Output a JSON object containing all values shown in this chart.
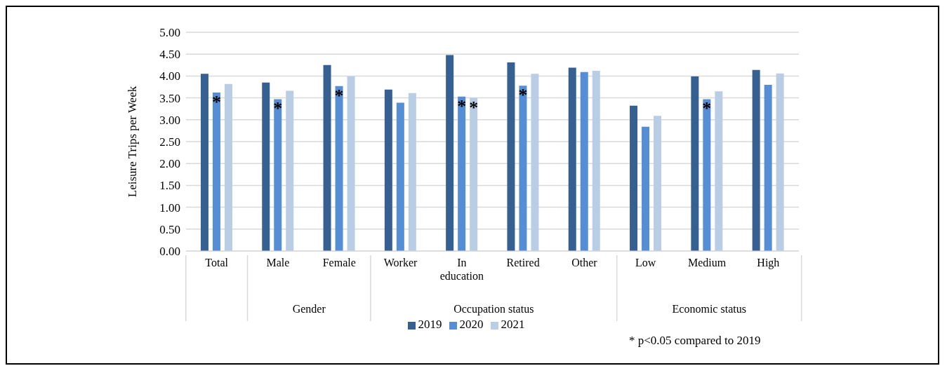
{
  "chart_data": {
    "type": "bar",
    "ylabel": "Leisure Trips per Week",
    "categories": [
      "Total",
      "Male",
      "Female",
      "Worker",
      "In education",
      "Retired",
      "Other",
      "Low",
      "Medium",
      "High"
    ],
    "series": [
      {
        "name": "2019",
        "color": "#366092",
        "values": [
          4.05,
          3.85,
          4.25,
          3.69,
          4.48,
          4.31,
          4.19,
          3.32,
          3.99,
          4.14
        ]
      },
      {
        "name": "2020",
        "color": "#558ed5",
        "values": [
          3.62,
          3.47,
          3.77,
          3.39,
          3.53,
          3.78,
          4.09,
          2.84,
          3.47,
          3.8
        ]
      },
      {
        "name": "2021",
        "color": "#b9cde5",
        "values": [
          3.82,
          3.66,
          3.99,
          3.61,
          3.5,
          4.05,
          4.12,
          3.09,
          3.65,
          4.06
        ]
      }
    ],
    "ylim": [
      0,
      5
    ],
    "yticks": [
      {
        "value": 0,
        "label": "0.00"
      },
      {
        "value": 0.5,
        "label": "0.50"
      },
      {
        "value": 1,
        "label": "1.00"
      },
      {
        "value": 1.5,
        "label": "1.50"
      },
      {
        "value": 2,
        "label": "2.00"
      },
      {
        "value": 2.5,
        "label": "2.50"
      },
      {
        "value": 3,
        "label": "3.00"
      },
      {
        "value": 3.5,
        "label": "3.50"
      },
      {
        "value": 4,
        "label": "4.00"
      },
      {
        "value": 4.5,
        "label": "4.50"
      },
      {
        "value": 5,
        "label": "5.00"
      }
    ],
    "grid": "y",
    "legend": "bottom",
    "annotations": [
      "Gender",
      "Occupation status",
      "Economic status",
      "* p<0.05 compared to 2019",
      {
        "text": "*",
        "x": "Total",
        "y": 3.62
      },
      {
        "text": "*",
        "x": "Male",
        "y": 3.47
      },
      {
        "text": "*",
        "x": "Female",
        "y": 3.77
      },
      {
        "text": "*",
        "x": "In education",
        "y": 3.53
      },
      {
        "text": "*",
        "x": "In education",
        "y": 3.5
      },
      {
        "text": "*",
        "x": "Retired",
        "y": 3.78
      },
      {
        "text": "*",
        "x": "Medium",
        "y": 3.47
      }
    ]
  }
}
